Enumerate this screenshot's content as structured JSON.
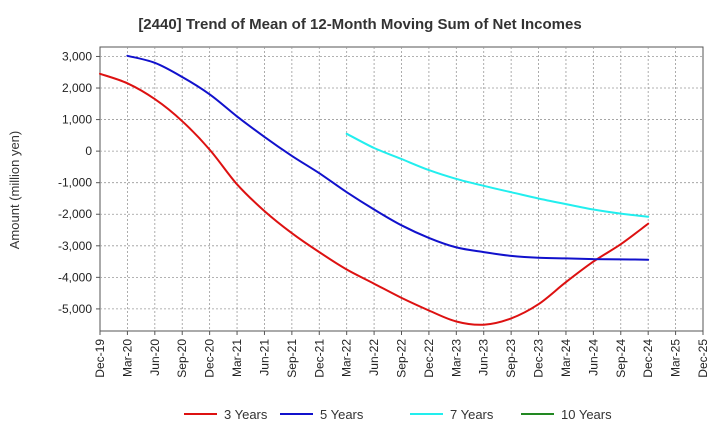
{
  "chart_data": {
    "type": "line",
    "title": "[2440]  Trend of Mean of 12-Month Moving Sum of Net Incomes",
    "ylabel": "Amount (million yen)",
    "xlabel": "",
    "x_tick_labels": [
      "Dec-19",
      "Mar-20",
      "Jun-20",
      "Sep-20",
      "Dec-20",
      "Mar-21",
      "Jun-21",
      "Sep-21",
      "Dec-21",
      "Mar-22",
      "Jun-22",
      "Sep-22",
      "Dec-22",
      "Mar-23",
      "Jun-23",
      "Sep-23",
      "Dec-23",
      "Mar-24",
      "Jun-24",
      "Sep-24",
      "Dec-24",
      "Mar-25",
      "Dec-25"
    ],
    "y_ticks": [
      3000,
      2000,
      1000,
      0,
      -1000,
      -2000,
      -3000,
      -4000,
      -5000
    ],
    "y_tick_labels": [
      "3,000",
      "2,000",
      "1,000",
      "0",
      "-1,000",
      "-2,000",
      "-3,000",
      "-4,000",
      "-5,000"
    ],
    "ylim": [
      -5700,
      3300
    ],
    "grid": true,
    "legend_position": "bottom",
    "series": [
      {
        "name": "3 Years",
        "color": "#dd1111",
        "points": [
          [
            "Dec-19",
            2450
          ],
          [
            "Mar-20",
            2150
          ],
          [
            "Jun-20",
            1650
          ],
          [
            "Sep-20",
            950
          ],
          [
            "Dec-20",
            50
          ],
          [
            "Mar-21",
            -1050
          ],
          [
            "Jun-21",
            -1900
          ],
          [
            "Sep-21",
            -2600
          ],
          [
            "Dec-21",
            -3200
          ],
          [
            "Mar-22",
            -3750
          ],
          [
            "Jun-22",
            -4200
          ],
          [
            "Sep-22",
            -4650
          ],
          [
            "Dec-22",
            -5050
          ],
          [
            "Mar-23",
            -5400
          ],
          [
            "Jun-23",
            -5500
          ],
          [
            "Sep-23",
            -5300
          ],
          [
            "Dec-23",
            -4850
          ],
          [
            "Mar-24",
            -4150
          ],
          [
            "Jun-24",
            -3500
          ],
          [
            "Sep-24",
            -2950
          ],
          [
            "Dec-24",
            -2300
          ]
        ]
      },
      {
        "name": "5 Years",
        "color": "#1111cc",
        "points": [
          [
            "Mar-20",
            3020
          ],
          [
            "Jun-20",
            2800
          ],
          [
            "Sep-20",
            2350
          ],
          [
            "Dec-20",
            1800
          ],
          [
            "Mar-21",
            1100
          ],
          [
            "Jun-21",
            450
          ],
          [
            "Sep-21",
            -150
          ],
          [
            "Dec-21",
            -700
          ],
          [
            "Mar-22",
            -1300
          ],
          [
            "Jun-22",
            -1850
          ],
          [
            "Sep-22",
            -2350
          ],
          [
            "Dec-22",
            -2750
          ],
          [
            "Mar-23",
            -3050
          ],
          [
            "Jun-23",
            -3200
          ],
          [
            "Sep-23",
            -3320
          ],
          [
            "Dec-23",
            -3380
          ],
          [
            "Mar-24",
            -3400
          ],
          [
            "Jun-24",
            -3420
          ],
          [
            "Sep-24",
            -3430
          ],
          [
            "Dec-24",
            -3440
          ]
        ]
      },
      {
        "name": "7 Years",
        "color": "#22eeee",
        "points": [
          [
            "Mar-22",
            550
          ],
          [
            "Jun-22",
            100
          ],
          [
            "Sep-22",
            -250
          ],
          [
            "Dec-22",
            -600
          ],
          [
            "Mar-23",
            -880
          ],
          [
            "Jun-23",
            -1100
          ],
          [
            "Sep-23",
            -1300
          ],
          [
            "Dec-23",
            -1500
          ],
          [
            "Mar-24",
            -1680
          ],
          [
            "Jun-24",
            -1850
          ],
          [
            "Sep-24",
            -1980
          ],
          [
            "Dec-24",
            -2080
          ]
        ]
      },
      {
        "name": "10 Years",
        "color": "#228822",
        "points": []
      }
    ]
  }
}
